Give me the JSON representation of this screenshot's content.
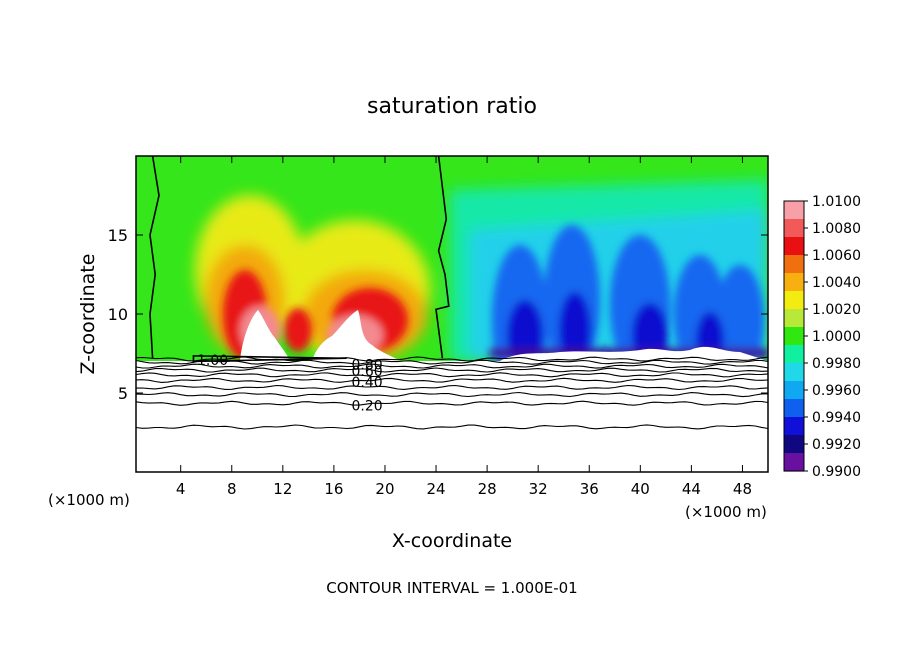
{
  "chart_data": {
    "type": "heatmap",
    "title": "saturation ratio",
    "xlabel": "X-coordinate",
    "ylabel": "Z-coordinate",
    "x_unit_left": "(×1000 m)",
    "x_unit_right": "(×1000 m)",
    "footer": "CONTOUR INTERVAL = 1.000E-01",
    "xlim": [
      0.5,
      50
    ],
    "ylim": [
      0,
      20
    ],
    "xticks": [
      4,
      8,
      12,
      16,
      20,
      24,
      28,
      32,
      36,
      40,
      44,
      48
    ],
    "yticks": [
      5,
      10,
      15
    ],
    "colorbar": {
      "labels": [
        "1.0100",
        "1.0080",
        "1.0060",
        "1.0040",
        "1.0020",
        "1.0000",
        "0.9980",
        "0.9960",
        "0.9940",
        "0.9920",
        "0.9900"
      ],
      "colors": [
        "#f7a0a8",
        "#f25a5a",
        "#e81010",
        "#f07010",
        "#f7b010",
        "#f2ec10",
        "#b8e838",
        "#30e810",
        "#10f0a0",
        "#20d8e8",
        "#10a8f0",
        "#1060f0",
        "#1010d8",
        "#100880",
        "#6810a0"
      ],
      "min": 0.99,
      "max": 1.01
    },
    "contour_labels": [
      {
        "text": "1.00",
        "x": 6.5,
        "z": 7.1
      },
      {
        "text": "0.80",
        "x": 18.6,
        "z": 6.8
      },
      {
        "text": "0.60",
        "x": 18.6,
        "z": 6.4
      },
      {
        "text": "0.40",
        "x": 18.6,
        "z": 5.7
      },
      {
        "text": "0.20",
        "x": 18.6,
        "z": 4.2
      }
    ],
    "contour_lines_z": [
      7.15,
      6.95,
      6.7,
      6.45,
      6.15,
      5.8,
      5.35,
      4.9,
      4.35,
      2.85
    ],
    "s_equal_1_boundary_left": [
      [
        1.8,
        20
      ],
      [
        2.3,
        17.5
      ],
      [
        1.6,
        15
      ],
      [
        2.0,
        12.5
      ],
      [
        1.6,
        10
      ],
      [
        1.8,
        7.2
      ]
    ],
    "s_equal_1_boundary_right": [
      [
        24.2,
        20
      ],
      [
        24.8,
        16
      ],
      [
        24.2,
        14
      ],
      [
        24.7,
        12.5
      ],
      [
        25.0,
        10.5
      ],
      [
        24.0,
        10.3
      ],
      [
        24.5,
        7.2
      ]
    ],
    "cloud_base_z": 7.2
  }
}
